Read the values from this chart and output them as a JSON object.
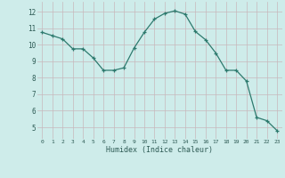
{
  "x": [
    0,
    1,
    2,
    3,
    4,
    5,
    6,
    7,
    8,
    9,
    10,
    11,
    12,
    13,
    14,
    15,
    16,
    17,
    18,
    19,
    20,
    21,
    22,
    23
  ],
  "y": [
    10.75,
    10.55,
    10.35,
    9.75,
    9.75,
    9.2,
    8.45,
    8.45,
    8.6,
    9.8,
    10.75,
    11.55,
    11.9,
    12.05,
    11.85,
    10.8,
    10.3,
    9.5,
    8.45,
    8.45,
    7.8,
    5.6,
    5.4,
    4.8
  ],
  "xlim": [
    -0.5,
    23.5
  ],
  "ylim": [
    4.3,
    12.6
  ],
  "xticks": [
    0,
    1,
    2,
    3,
    4,
    5,
    6,
    7,
    8,
    9,
    10,
    11,
    12,
    13,
    14,
    15,
    16,
    17,
    18,
    19,
    20,
    21,
    22,
    23
  ],
  "yticks": [
    5,
    6,
    7,
    8,
    9,
    10,
    11,
    12
  ],
  "xlabel": "Humidex (Indice chaleur)",
  "line_color": "#2d7a6e",
  "marker_color": "#2d7a6e",
  "bg_color": "#ceecea",
  "grid_color": "#c8b8bc",
  "figsize": [
    3.2,
    2.0
  ],
  "dpi": 100
}
